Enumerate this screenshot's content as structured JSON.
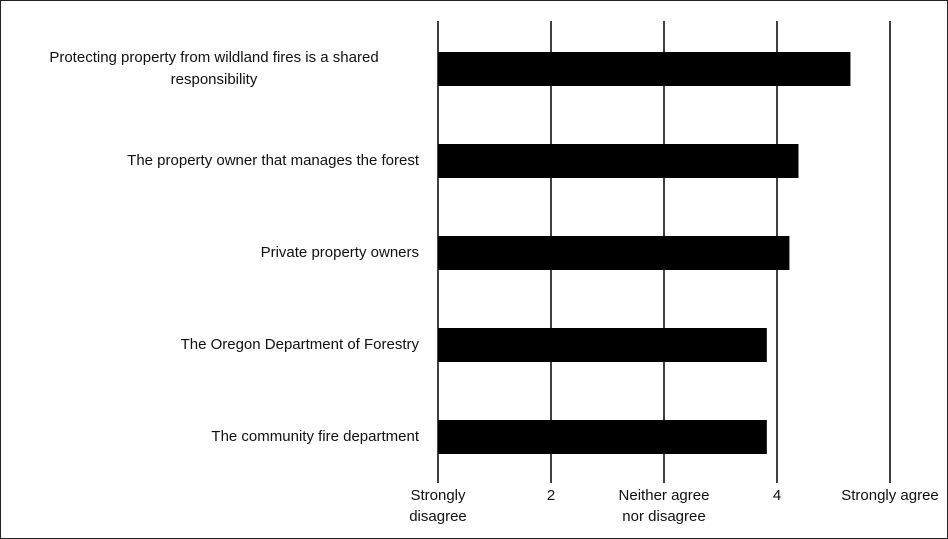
{
  "chart_data": {
    "type": "barh",
    "categories": [
      "Protecting property from wildland fires is a shared responsibility",
      "The property owner that manages the forest",
      "Private property owners",
      "The Oregon Department of Forestry",
      "The community fire department"
    ],
    "values": [
      4.65,
      4.19,
      4.11,
      3.91,
      3.91
    ],
    "color": "#000000",
    "xlim": [
      1,
      5
    ],
    "xticks": [
      {
        "value": 1,
        "label": "Strongly disagree"
      },
      2,
      {
        "value": 3,
        "label": "Neither agree nor disagree"
      },
      4,
      {
        "value": 5,
        "label": "Strongly agree"
      }
    ],
    "grid": true
  }
}
